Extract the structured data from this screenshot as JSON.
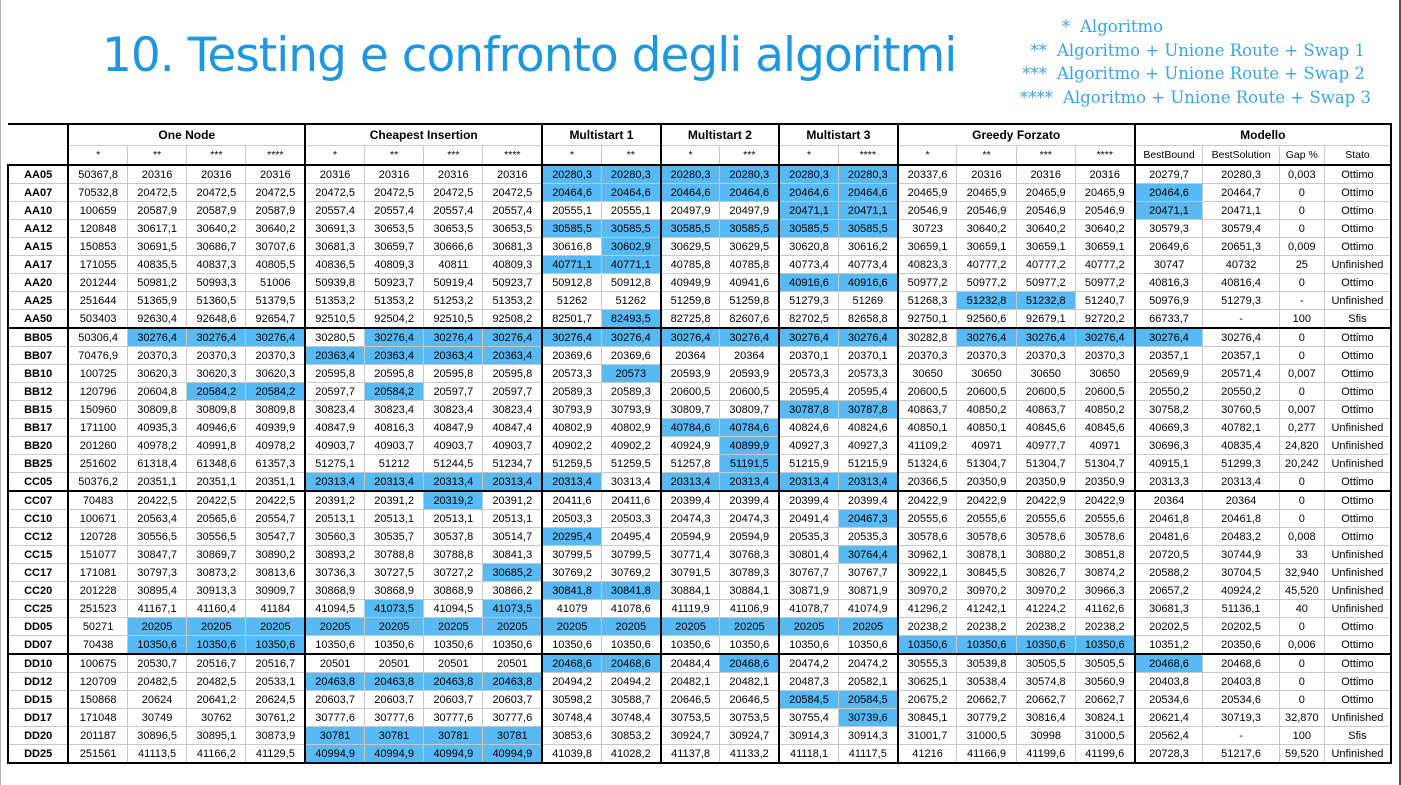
{
  "title": "10. Testing e confronto degli algoritmi",
  "legend": [
    {
      "mark": "*",
      "text": "Algoritmo"
    },
    {
      "mark": "**",
      "text": "Algoritmo + Unione Route + Swap 1"
    },
    {
      "mark": "***",
      "text": "Algoritmo + Unione Route + Swap 2"
    },
    {
      "mark": "****",
      "text": "Algoritmo + Unione Route + Swap 3"
    }
  ],
  "highlight_color": "#57baf5",
  "title_color": "#1f97e0",
  "groups": [
    {
      "label": "One Node",
      "span": 4
    },
    {
      "label": "Cheapest Insertion",
      "span": 4
    },
    {
      "label": "Multistart 1",
      "span": 2
    },
    {
      "label": "Multistart 2",
      "span": 2
    },
    {
      "label": "Multistart 3",
      "span": 2
    },
    {
      "label": "Greedy Forzato",
      "span": 4
    },
    {
      "label": "Modello",
      "span": 4
    }
  ],
  "subheaders": [
    "*",
    "**",
    "***",
    "****",
    "*",
    "**",
    "***",
    "****",
    "*",
    "**",
    "*",
    "***",
    "*",
    "****",
    "*",
    "**",
    "***",
    "****",
    "BestBound",
    "BestSolution",
    "Gap %",
    "Stato"
  ],
  "rows": [
    {
      "name": "AA05",
      "cells": [
        "50367,8",
        "20316",
        "20316",
        "20316",
        "20316",
        "20316",
        "20316",
        "20316",
        "20280,3",
        "20280,3",
        "20280,3",
        "20280,3",
        "20280,3",
        "20280,3",
        "20337,6",
        "20316",
        "20316",
        "20316",
        "20279,7",
        "20280,3",
        "0,003",
        "Ottimo"
      ],
      "hl": [
        8,
        9,
        10,
        11,
        12,
        13
      ]
    },
    {
      "name": "AA07",
      "cells": [
        "70532,8",
        "20472,5",
        "20472,5",
        "20472,5",
        "20472,5",
        "20472,5",
        "20472,5",
        "20472,5",
        "20464,6",
        "20464,6",
        "20464,6",
        "20464,6",
        "20464,6",
        "20464,6",
        "20465,9",
        "20465,9",
        "20465,9",
        "20465,9",
        "20464,6",
        "20464,7",
        "0",
        "Ottimo"
      ],
      "hl": [
        8,
        9,
        10,
        11,
        12,
        13,
        18
      ]
    },
    {
      "name": "AA10",
      "cells": [
        "100659",
        "20587,9",
        "20587,9",
        "20587,9",
        "20557,4",
        "20557,4",
        "20557,4",
        "20557,4",
        "20555,1",
        "20555,1",
        "20497,9",
        "20497,9",
        "20471,1",
        "20471,1",
        "20546,9",
        "20546,9",
        "20546,9",
        "20546,9",
        "20471,1",
        "20471,1",
        "0",
        "Ottimo"
      ],
      "hl": [
        12,
        13,
        18
      ]
    },
    {
      "name": "AA12",
      "cells": [
        "120848",
        "30617,1",
        "30640,2",
        "30640,2",
        "30691,3",
        "30653,5",
        "30653,5",
        "30653,5",
        "30585,5",
        "30585,5",
        "30585,5",
        "30585,5",
        "30585,5",
        "30585,5",
        "30723",
        "30640,2",
        "30640,2",
        "30640,2",
        "30579,3",
        "30579,4",
        "0",
        "Ottimo"
      ],
      "hl": [
        8,
        9,
        10,
        11,
        12,
        13
      ]
    },
    {
      "name": "AA15",
      "cells": [
        "150853",
        "30691,5",
        "30686,7",
        "30707,6",
        "30681,3",
        "30659,7",
        "30666,6",
        "30681,3",
        "30616,8",
        "30602,9",
        "30629,5",
        "30629,5",
        "30620,8",
        "30616,2",
        "30659,1",
        "30659,1",
        "30659,1",
        "30659,1",
        "20649,6",
        "20651,3",
        "0,009",
        "Ottimo"
      ],
      "hl": [
        9
      ]
    },
    {
      "name": "AA17",
      "cells": [
        "171055",
        "40835,5",
        "40837,3",
        "40805,5",
        "40836,5",
        "40809,3",
        "40811",
        "40809,3",
        "40771,1",
        "40771,1",
        "40785,8",
        "40785,8",
        "40773,4",
        "40773,4",
        "40823,3",
        "40777,2",
        "40777,2",
        "40777,2",
        "30747",
        "40732",
        "25",
        "Unfinished"
      ],
      "hl": [
        8,
        9
      ]
    },
    {
      "name": "AA20",
      "cells": [
        "201244",
        "50981,2",
        "50993,3",
        "51006",
        "50939,8",
        "50923,7",
        "50919,4",
        "50923,7",
        "50912,8",
        "50912,8",
        "40949,9",
        "40941,6",
        "40916,6",
        "40916,6",
        "50977,2",
        "50977,2",
        "50977,2",
        "50977,2",
        "40816,3",
        "40816,4",
        "0",
        "Ottimo"
      ],
      "hl": [
        12,
        13
      ]
    },
    {
      "name": "AA25",
      "cells": [
        "251644",
        "51365,9",
        "51360,5",
        "51379,5",
        "51353,2",
        "51353,2",
        "51253,2",
        "51353,2",
        "51262",
        "51262",
        "51259,8",
        "51259,8",
        "51279,3",
        "51269",
        "51268,3",
        "51232,8",
        "51232,8",
        "51240,7",
        "50976,9",
        "51279,3",
        "-",
        "Unfinished"
      ],
      "hl": [
        15,
        16
      ]
    },
    {
      "name": "AA50",
      "cells": [
        "503403",
        "92630,4",
        "92648,6",
        "92654,7",
        "92510,5",
        "92504,2",
        "92510,5",
        "92508,2",
        "82501,7",
        "82493,5",
        "82725,8",
        "82607,6",
        "82702,5",
        "82658,8",
        "92750,1",
        "92560,6",
        "92679,1",
        "92720,2",
        "66733,7",
        "-",
        "100",
        "Sfis"
      ],
      "hl": [
        9
      ]
    },
    {
      "name": "BB05",
      "cells": [
        "50306,4",
        "30276,4",
        "30276,4",
        "30276,4",
        "30280,5",
        "30276,4",
        "30276,4",
        "30276,4",
        "30276,4",
        "30276,4",
        "30276,4",
        "30276,4",
        "30276,4",
        "30276,4",
        "30282,8",
        "30276,4",
        "30276,4",
        "30276,4",
        "30276,4",
        "30276,4",
        "0",
        "Ottimo"
      ],
      "hl": [
        1,
        2,
        3,
        5,
        6,
        7,
        8,
        9,
        10,
        11,
        12,
        13,
        15,
        16,
        17,
        18
      ]
    },
    {
      "name": "BB07",
      "cells": [
        "70476,9",
        "20370,3",
        "20370,3",
        "20370,3",
        "20363,4",
        "20363,4",
        "20363,4",
        "20363,4",
        "20369,6",
        "20369,6",
        "20364",
        "20364",
        "20370,1",
        "20370,1",
        "20370,3",
        "20370,3",
        "20370,3",
        "20370,3",
        "20357,1",
        "20357,1",
        "0",
        "Ottimo"
      ],
      "hl": [
        4,
        5,
        6,
        7
      ]
    },
    {
      "name": "BB10",
      "cells": [
        "100725",
        "30620,3",
        "30620,3",
        "30620,3",
        "20595,8",
        "20595,8",
        "20595,8",
        "20595,8",
        "20573,3",
        "20573",
        "20593,9",
        "20593,9",
        "20573,3",
        "20573,3",
        "30650",
        "30650",
        "30650",
        "30650",
        "20569,9",
        "20571,4",
        "0,007",
        "Ottimo"
      ],
      "hl": [
        9
      ]
    },
    {
      "name": "BB12",
      "cells": [
        "120796",
        "20604,8",
        "20584,2",
        "20584,2",
        "20597,7",
        "20584,2",
        "20597,7",
        "20597,7",
        "20589,3",
        "20589,3",
        "20600,5",
        "20600,5",
        "20595,4",
        "20595,4",
        "20600,5",
        "20600,5",
        "20600,5",
        "20600,5",
        "20550,2",
        "20550,2",
        "0",
        "Ottimo"
      ],
      "hl": [
        2,
        3,
        5
      ]
    },
    {
      "name": "BB15",
      "cells": [
        "150960",
        "30809,8",
        "30809,8",
        "30809,8",
        "30823,4",
        "30823,4",
        "30823,4",
        "30823,4",
        "30793,9",
        "30793,9",
        "30809,7",
        "30809,7",
        "30787,8",
        "30787,8",
        "40863,7",
        "40850,2",
        "40863,7",
        "40850,2",
        "30758,2",
        "30760,5",
        "0,007",
        "Ottimo"
      ],
      "hl": [
        12,
        13
      ]
    },
    {
      "name": "BB17",
      "cells": [
        "171100",
        "40935,3",
        "40946,6",
        "40939,9",
        "40847,9",
        "40816,3",
        "40847,9",
        "40847,4",
        "40802,9",
        "40802,9",
        "40784,6",
        "40784,6",
        "40824,6",
        "40824,6",
        "40850,1",
        "40850,1",
        "40845,6",
        "40845,6",
        "40669,3",
        "40782,1",
        "0,277",
        "Unfinished"
      ],
      "hl": [
        10,
        11
      ]
    },
    {
      "name": "BB20",
      "cells": [
        "201260",
        "40978,2",
        "40991,8",
        "40978,2",
        "40903,7",
        "40903,7",
        "40903,7",
        "40903,7",
        "40902,2",
        "40902,2",
        "40924,9",
        "40899,9",
        "40927,3",
        "40927,3",
        "41109,2",
        "40971",
        "40977,7",
        "40971",
        "30696,3",
        "40835,4",
        "24,820",
        "Unfinished"
      ],
      "hl": [
        11
      ]
    },
    {
      "name": "BB25",
      "cells": [
        "251602",
        "61318,4",
        "61348,6",
        "61357,3",
        "51275,1",
        "51212",
        "51244,5",
        "51234,7",
        "51259,5",
        "51259,5",
        "51257,8",
        "51191,5",
        "51215,9",
        "51215,9",
        "51324,6",
        "51304,7",
        "51304,7",
        "51304,7",
        "40915,1",
        "51299,3",
        "20,242",
        "Unfinished"
      ],
      "hl": [
        11
      ]
    },
    {
      "name": "CC05",
      "cells": [
        "50376,2",
        "20351,1",
        "20351,1",
        "20351,1",
        "20313,4",
        "20313,4",
        "20313,4",
        "20313,4",
        "20313,4",
        "30313,4",
        "20313,4",
        "20313,4",
        "20313,4",
        "20313,4",
        "20366,5",
        "20350,9",
        "20350,9",
        "20350,9",
        "20313,3",
        "20313,4",
        "0",
        "Ottimo"
      ],
      "hl": [
        4,
        5,
        6,
        7,
        8,
        10,
        11,
        12,
        13
      ]
    },
    {
      "name": "CC07",
      "cells": [
        "70483",
        "20422,5",
        "20422,5",
        "20422,5",
        "20391,2",
        "20391,2",
        "20319,2",
        "20391,2",
        "20411,6",
        "20411,6",
        "20399,4",
        "20399,4",
        "20399,4",
        "20399,4",
        "20422,9",
        "20422,9",
        "20422,9",
        "20422,9",
        "20364",
        "20364",
        "0",
        "Ottimo"
      ],
      "hl": [
        6
      ]
    },
    {
      "name": "CC10",
      "cells": [
        "100671",
        "20563,4",
        "20565,6",
        "20554,7",
        "20513,1",
        "20513,1",
        "20513,1",
        "20513,1",
        "20503,3",
        "20503,3",
        "20474,3",
        "20474,3",
        "20491,4",
        "20467,3",
        "20555,6",
        "20555,6",
        "20555,6",
        "20555,6",
        "20461,8",
        "20461,8",
        "0",
        "Ottimo"
      ],
      "hl": [
        13
      ]
    },
    {
      "name": "CC12",
      "cells": [
        "120728",
        "30556,5",
        "30556,5",
        "30547,7",
        "30560,3",
        "30535,7",
        "30537,8",
        "30514,7",
        "20295,4",
        "20495,4",
        "20594,9",
        "20594,9",
        "20535,3",
        "20535,3",
        "30578,6",
        "30578,6",
        "30578,6",
        "30578,6",
        "20481,6",
        "20483,2",
        "0,008",
        "Ottimo"
      ],
      "hl": [
        8
      ]
    },
    {
      "name": "CC15",
      "cells": [
        "151077",
        "30847,7",
        "30869,7",
        "30890,2",
        "30893,2",
        "30788,8",
        "30788,8",
        "30841,3",
        "30799,5",
        "30799,5",
        "30771,4",
        "30768,3",
        "30801,4",
        "30764,4",
        "30962,1",
        "30878,1",
        "30880,2",
        "30851,8",
        "20720,5",
        "30744,9",
        "33",
        "Unfinished"
      ],
      "hl": [
        13
      ]
    },
    {
      "name": "CC17",
      "cells": [
        "171081",
        "30797,3",
        "30873,2",
        "30813,6",
        "30736,3",
        "30727,5",
        "30727,2",
        "30685,2",
        "30769,2",
        "30769,2",
        "30791,5",
        "30789,3",
        "30767,7",
        "30767,7",
        "30922,1",
        "30845,5",
        "30826,7",
        "30874,2",
        "20588,2",
        "30704,5",
        "32,940",
        "Unfinished"
      ],
      "hl": [
        7
      ]
    },
    {
      "name": "CC20",
      "cells": [
        "201228",
        "30895,4",
        "30913,3",
        "30909,7",
        "30868,9",
        "30868,9",
        "30868,9",
        "30866,2",
        "30841,8",
        "30841,8",
        "30884,1",
        "30884,1",
        "30871,9",
        "30871,9",
        "30970,2",
        "30970,2",
        "30970,2",
        "30966,3",
        "20657,2",
        "40924,2",
        "45,520",
        "Unfinished"
      ],
      "hl": [
        8,
        9
      ]
    },
    {
      "name": "CC25",
      "cells": [
        "251523",
        "41167,1",
        "41160,4",
        "41184",
        "41094,5",
        "41073,5",
        "41094,5",
        "41073,5",
        "41079",
        "41078,6",
        "41119,9",
        "41106,9",
        "41078,7",
        "41074,9",
        "41296,2",
        "41242,1",
        "41224,2",
        "41162,6",
        "30681,3",
        "51136,1",
        "40",
        "Unfinished"
      ],
      "hl": [
        5,
        7
      ]
    },
    {
      "name": "DD05",
      "cells": [
        "50271",
        "20205",
        "20205",
        "20205",
        "20205",
        "20205",
        "20205",
        "20205",
        "20205",
        "20205",
        "20205",
        "20205",
        "20205",
        "20205",
        "20238,2",
        "20238,2",
        "20238,2",
        "20238,2",
        "20202,5",
        "20202,5",
        "0",
        "Ottimo"
      ],
      "hl": [
        1,
        2,
        3,
        4,
        5,
        6,
        7,
        8,
        9,
        10,
        11,
        12,
        13
      ]
    },
    {
      "name": "DD07",
      "cells": [
        "70438",
        "10350,6",
        "10350,6",
        "10350,6",
        "10350,6",
        "10350,6",
        "10350,6",
        "10350,6",
        "10350,6",
        "10350,6",
        "10350,6",
        "10350,6",
        "10350,6",
        "10350,6",
        "10350,6",
        "10350,6",
        "10350,6",
        "10350,6",
        "10351,2",
        "20350,6",
        "0,006",
        "Ottimo"
      ],
      "hl": [
        1,
        2,
        3,
        14,
        15,
        16,
        17
      ]
    },
    {
      "name": "DD10",
      "cells": [
        "100675",
        "20530,7",
        "20516,7",
        "20516,7",
        "20501",
        "20501",
        "20501",
        "20501",
        "20468,6",
        "20468,6",
        "20484,4",
        "20468,6",
        "20474,2",
        "20474,2",
        "30555,3",
        "30539,8",
        "30505,5",
        "30505,5",
        "20468,6",
        "20468,6",
        "0",
        "Ottimo"
      ],
      "hl": [
        8,
        9,
        11,
        18
      ]
    },
    {
      "name": "DD12",
      "cells": [
        "120709",
        "20482,5",
        "20482,5",
        "20533,1",
        "20463,8",
        "20463,8",
        "20463,8",
        "20463,8",
        "20494,2",
        "20494,2",
        "20482,1",
        "20482,1",
        "20487,3",
        "20582,1",
        "30625,1",
        "30538,4",
        "30574,8",
        "30560,9",
        "20403,8",
        "20403,8",
        "0",
        "Ottimo"
      ],
      "hl": [
        4,
        5,
        6,
        7
      ]
    },
    {
      "name": "DD15",
      "cells": [
        "150868",
        "20624",
        "20641,2",
        "20624,5",
        "20603,7",
        "20603,7",
        "20603,7",
        "20603,7",
        "30598,2",
        "30588,7",
        "20646,5",
        "20646,5",
        "20584,5",
        "20584,5",
        "20675,2",
        "20662,7",
        "20662,7",
        "20662,7",
        "20534,6",
        "20534,6",
        "0",
        "Ottimo"
      ],
      "hl": [
        12,
        13
      ]
    },
    {
      "name": "DD17",
      "cells": [
        "171048",
        "30749",
        "30762",
        "30761,2",
        "30777,6",
        "30777,6",
        "30777,6",
        "30777,6",
        "30748,4",
        "30748,4",
        "30753,5",
        "30753,5",
        "30755,4",
        "30739,6",
        "30845,1",
        "30779,2",
        "30816,4",
        "30824,1",
        "20621,4",
        "30719,3",
        "32,870",
        "Unfinished"
      ],
      "hl": [
        13
      ]
    },
    {
      "name": "DD20",
      "cells": [
        "201187",
        "30896,5",
        "30895,1",
        "30873,9",
        "30781",
        "30781",
        "30781",
        "30781",
        "30853,6",
        "30853,2",
        "30924,7",
        "30924,7",
        "30914,3",
        "30914,3",
        "31001,7",
        "31000,5",
        "30998",
        "31000,5",
        "20562,4",
        "-",
        "100",
        "Sfis"
      ],
      "hl": [
        4,
        5,
        6,
        7
      ]
    },
    {
      "name": "DD25",
      "cells": [
        "251561",
        "41113,5",
        "41166,2",
        "41129,5",
        "40994,9",
        "40994,9",
        "40994,9",
        "40994,9",
        "41039,8",
        "41028,2",
        "41137,8",
        "41133,2",
        "41118,1",
        "41117,5",
        "41216",
        "41166,9",
        "41199,6",
        "41199,6",
        "20728,3",
        "51217,6",
        "59,520",
        "Unfinished"
      ],
      "hl": [
        4,
        5,
        6,
        7
      ]
    }
  ]
}
